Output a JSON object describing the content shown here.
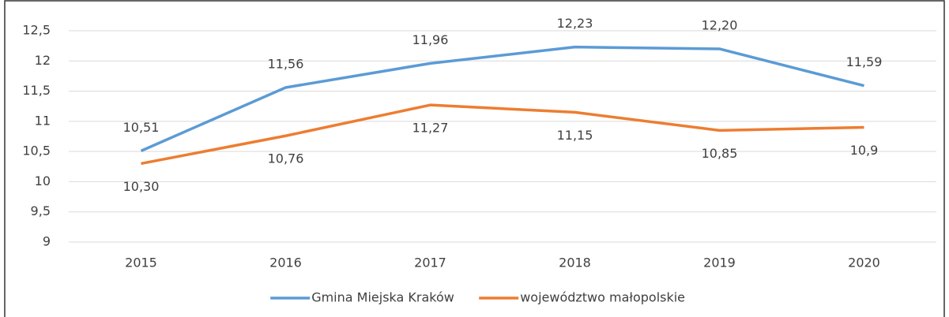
{
  "chart_data": {
    "type": "line",
    "categories": [
      "2015",
      "2016",
      "2017",
      "2018",
      "2019",
      "2020"
    ],
    "series": [
      {
        "name": "Gmina Miejska Kraków",
        "color": "#5b9bd5",
        "values": [
          10.51,
          11.56,
          11.96,
          12.23,
          12.2,
          11.59
        ],
        "value_labels": [
          "10,51",
          "11,56",
          "11,96",
          "12,23",
          "12,20",
          "11,59"
        ]
      },
      {
        "name": "województwo małopolskie",
        "color": "#ed7d31",
        "values": [
          10.3,
          10.76,
          11.27,
          11.15,
          10.85,
          10.9
        ],
        "value_labels": [
          "10,30",
          "10,76",
          "11,27",
          "11,15",
          "10,85",
          "10,9"
        ]
      }
    ],
    "ylim": [
      9,
      12.5
    ],
    "yticks": [
      9,
      {
        "value": 9.5,
        "label": "9,5"
      },
      10,
      {
        "value": 10.5,
        "label": "10,5"
      },
      11,
      {
        "value": 11.5,
        "label": "11,5"
      },
      12,
      {
        "value": 12.5,
        "label": "12,5"
      }
    ],
    "grid": true,
    "legend": "bottom"
  }
}
